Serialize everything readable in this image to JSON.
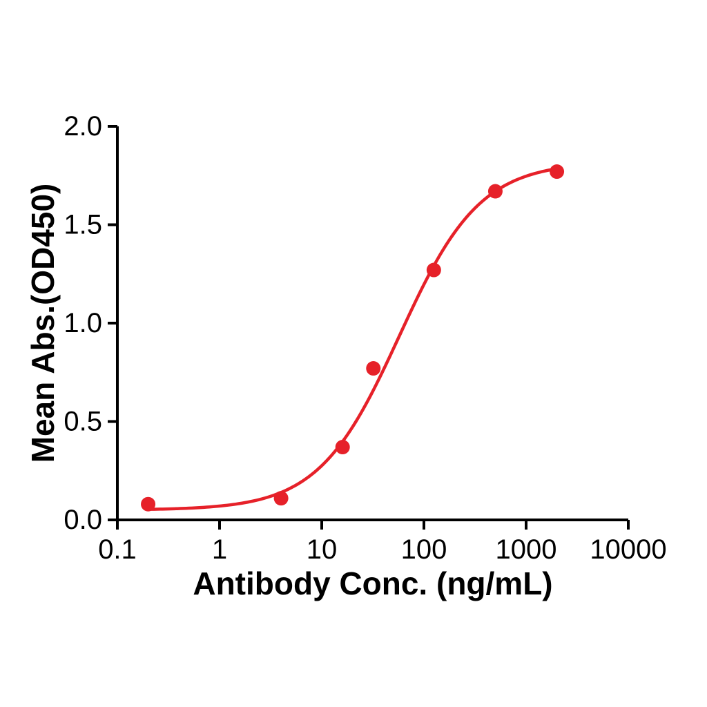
{
  "figure": {
    "background": "#ffffff",
    "axis_color": "#000000",
    "text_color": "#000000"
  },
  "chart_data": {
    "type": "scatter",
    "title": "",
    "xlabel": "Antibody Conc. (ng/mL)",
    "ylabel": "Mean Abs.(OD450)",
    "x_scale": "log",
    "xlim": [
      0.1,
      10000
    ],
    "ylim": [
      0.0,
      2.0
    ],
    "x_tick_values": [
      0.1,
      1,
      10,
      100,
      1000,
      10000
    ],
    "x_tick_labels": [
      "0.1",
      "1",
      "10",
      "100",
      "1000",
      "10000"
    ],
    "y_tick_values": [
      0.0,
      0.5,
      1.0,
      1.5,
      2.0
    ],
    "y_tick_labels": [
      "0.0",
      "0.5",
      "1.0",
      "1.5",
      "2.0"
    ],
    "grid": false,
    "legend": null,
    "series": [
      {
        "name": "Mean Abs.(OD450)",
        "marker": "circle",
        "marker_color": "#e62129",
        "line_color": "#e62129",
        "x": [
          0.2,
          4,
          16,
          32,
          125,
          500,
          2000
        ],
        "y": [
          0.08,
          0.11,
          0.37,
          0.77,
          1.27,
          1.67,
          1.77
        ]
      }
    ],
    "fit_curve": {
      "model": "4PL",
      "bottom": 0.05,
      "top": 1.82,
      "ec50": 57.5,
      "hill": 1.1,
      "x_range": [
        0.2,
        2000
      ]
    }
  }
}
